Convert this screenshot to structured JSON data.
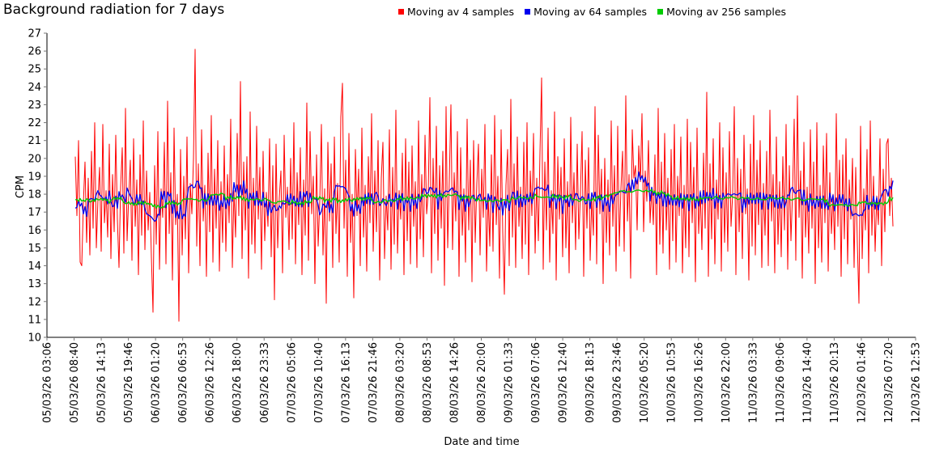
{
  "page": {
    "title": "Background radiation for 7 days"
  },
  "axes": {
    "x_title": "Date and time",
    "y_title": "CPM"
  },
  "legend": {
    "items": [
      {
        "label": "Moving av 4 samples",
        "color": "#ff0000"
      },
      {
        "label": "Moving av 64 samples",
        "color": "#0000ee"
      },
      {
        "label": "Moving av 256 samples",
        "color": "#00cc00"
      }
    ]
  },
  "chart_data": {
    "type": "line",
    "title": "Background radiation for 7 days",
    "xlabel": "Date and time",
    "ylabel": "CPM",
    "ylim": [
      10,
      27
    ],
    "yticks": [
      10,
      11,
      12,
      13,
      14,
      15,
      16,
      17,
      18,
      19,
      20,
      21,
      22,
      23,
      24,
      25,
      26,
      27
    ],
    "grid": false,
    "legend_position": "top",
    "xticklabels": [
      "05/03/26 03:06",
      "05/03/26 08:40",
      "05/03/26 14:13",
      "05/03/26 19:46",
      "06/03/26 01:20",
      "06/03/26 06:53",
      "06/03/26 12:26",
      "06/03/26 18:00",
      "06/03/26 23:33",
      "07/03/26 05:06",
      "07/03/26 10:40",
      "07/03/26 16:13",
      "07/03/26 21:46",
      "08/03/26 03:20",
      "08/03/26 08:53",
      "08/03/26 14:26",
      "08/03/26 20:00",
      "09/03/26 01:33",
      "09/03/26 07:06",
      "09/03/26 12:40",
      "09/03/26 18:13",
      "09/03/26 23:46",
      "10/03/26 05:20",
      "10/03/26 10:53",
      "10/03/26 16:26",
      "10/03/26 22:00",
      "11/03/26 03:33",
      "11/03/26 09:06",
      "11/03/26 14:40",
      "11/03/26 20:13",
      "12/03/26 01:46",
      "12/03/26 07:20",
      "12/03/26 12:53"
    ],
    "data_start_label": "05/03/26 08:40",
    "data_end_label": "12/03/26 07:20",
    "series": [
      {
        "name": "Moving av 4 samples",
        "color": "#ff0000",
        "approx_mean": 17.5,
        "observed_range": [
          10.9,
          26.1
        ],
        "values": [
          20.1,
          16.8,
          21.0,
          14.2,
          14.0,
          17.5,
          19.8,
          15.3,
          18.9,
          14.6,
          20.4,
          16.1,
          22.0,
          15.0,
          17.7,
          19.5,
          14.8,
          21.9,
          16.4,
          18.2,
          15.6,
          20.8,
          14.4,
          19.1,
          15.9,
          21.3,
          16.6,
          13.9,
          18.4,
          20.6,
          14.7,
          22.8,
          15.4,
          17.9,
          19.9,
          14.3,
          21.1,
          16.2,
          18.8,
          13.5,
          20.2,
          15.7,
          22.1,
          14.9,
          19.3,
          16.0,
          18.1,
          14.5,
          11.4,
          19.6,
          15.2,
          21.5,
          13.8,
          18.3,
          16.7,
          20.9,
          14.1,
          23.2,
          15.8,
          19.2,
          13.2,
          21.7,
          16.3,
          18.0,
          10.9,
          20.5,
          14.6,
          19.0,
          15.5,
          21.2,
          13.6,
          18.6,
          16.9,
          20.0,
          26.1,
          15.1,
          19.7,
          14.0,
          21.6,
          16.5,
          18.5,
          13.4,
          20.3,
          15.9,
          22.4,
          14.2,
          19.4,
          16.1,
          21.0,
          13.7,
          18.7,
          15.3,
          20.7,
          14.8,
          19.1,
          16.4,
          22.2,
          13.9,
          18.2,
          15.6,
          21.4,
          16.8,
          24.3,
          14.4,
          19.8,
          16.0,
          20.1,
          13.3,
          22.6,
          15.2,
          18.9,
          14.7,
          21.8,
          16.6,
          19.5,
          13.8,
          20.4,
          15.4,
          18.1,
          16.2,
          21.1,
          14.5,
          19.6,
          12.1,
          20.8,
          15.0,
          17.8,
          19.3,
          13.6,
          21.3,
          16.7,
          18.4,
          14.9,
          20.0,
          15.5,
          22.0,
          14.1,
          19.2,
          16.3,
          20.6,
          13.5,
          18.8,
          15.7,
          23.1,
          14.3,
          21.5,
          16.9,
          19.0,
          13.0,
          20.2,
          15.1,
          17.6,
          21.9,
          14.6,
          18.3,
          11.9,
          20.9,
          16.5,
          19.7,
          13.9,
          21.2,
          15.8,
          18.6,
          14.2,
          22.3,
          24.2,
          16.1,
          19.9,
          13.4,
          21.4,
          15.3,
          18.0,
          12.2,
          20.5,
          16.8,
          19.4,
          14.0,
          21.7,
          15.6,
          18.5,
          13.7,
          20.1,
          16.4,
          22.5,
          14.8,
          19.3,
          15.9,
          21.0,
          13.2,
          18.9,
          20.9,
          14.4,
          17.9,
          16.0,
          21.6,
          13.8,
          19.5,
          15.2,
          22.7,
          14.7,
          18.2,
          16.6,
          20.3,
          13.5,
          21.1,
          15.4,
          19.8,
          14.1,
          20.7,
          16.2,
          18.7,
          13.9,
          22.1,
          15.5,
          19.1,
          14.5,
          21.3,
          16.9,
          18.1,
          23.4,
          13.6,
          20.0,
          15.8,
          21.8,
          14.3,
          19.6,
          16.1,
          20.4,
          12.9,
          22.9,
          15.0,
          18.8,
          23.0,
          14.9,
          19.2,
          16.5,
          21.5,
          13.4,
          20.6,
          15.7,
          18.3,
          14.2,
          22.2,
          16.0,
          19.9,
          13.1,
          21.0,
          15.3,
          18.6,
          20.8,
          14.6,
          19.4,
          16.7,
          21.9,
          13.7,
          18.0,
          15.1,
          20.2,
          14.8,
          22.4,
          16.3,
          19.0,
          13.3,
          21.6,
          15.9,
          12.4,
          18.5,
          20.5,
          14.0,
          23.3,
          15.6,
          19.7,
          13.9,
          21.2,
          16.2,
          18.4,
          14.4,
          20.9,
          15.2,
          22.0,
          13.5,
          19.3,
          16.8,
          21.4,
          14.7,
          18.9,
          15.4,
          20.3,
          24.5,
          13.8,
          19.8,
          16.0,
          21.7,
          14.2,
          18.2,
          15.8,
          22.6,
          13.2,
          20.1,
          16.6,
          19.5,
          14.5,
          21.1,
          15.0,
          18.7,
          13.6,
          22.3,
          16.4,
          19.2,
          14.9,
          20.8,
          15.5,
          18.1,
          21.5,
          13.4,
          19.9,
          16.1,
          20.6,
          14.3,
          17.8,
          15.7,
          22.9,
          14.1,
          21.3,
          16.9,
          19.4,
          13.0,
          20.0,
          15.3,
          18.8,
          14.6,
          22.1,
          16.2,
          19.6,
          13.7,
          21.8,
          15.1,
          18.3,
          20.4,
          14.8,
          23.5,
          16.5,
          19.1,
          13.3,
          21.6,
          18.9,
          19.6,
          16.0,
          20.7,
          18.7,
          22.5,
          15.9,
          19.3,
          17.6,
          21.0,
          16.4,
          18.4,
          16.3,
          20.2,
          13.5,
          22.8,
          15.2,
          19.8,
          14.7,
          21.4,
          16.0,
          18.9,
          13.8,
          20.5,
          15.4,
          21.9,
          14.2,
          19.0,
          16.8,
          21.2,
          13.6,
          18.5,
          15.0,
          22.2,
          14.5,
          20.9,
          16.4,
          19.5,
          13.1,
          21.7,
          15.8,
          18.2,
          14.9,
          20.3,
          16.1,
          23.7,
          13.4,
          19.7,
          15.5,
          21.1,
          14.1,
          18.8,
          16.6,
          22.0,
          13.7,
          20.6,
          15.3,
          19.2,
          14.8,
          21.5,
          16.2,
          18.0,
          22.9,
          13.5,
          20.0,
          15.9,
          19.4,
          14.4,
          21.3,
          16.9,
          18.3,
          13.2,
          20.8,
          15.1,
          22.4,
          14.6,
          19.9,
          16.3,
          21.0,
          13.9,
          18.6,
          15.7,
          20.4,
          14.0,
          22.7,
          16.5,
          19.1,
          13.6,
          21.2,
          15.2,
          18.7,
          14.5,
          20.1,
          16.0,
          21.9,
          13.8,
          19.6,
          15.4,
          18.1,
          22.2,
          14.3,
          23.5,
          16.7,
          19.3,
          13.3,
          20.9,
          15.6,
          18.4,
          14.7,
          21.6,
          16.1,
          19.8,
          13.0,
          22.0,
          15.0,
          18.5,
          14.2,
          20.7,
          16.4,
          21.4,
          13.7,
          19.2,
          15.8,
          18.0,
          14.9,
          22.5,
          16.2,
          19.9,
          13.4,
          20.2,
          15.5,
          21.1,
          14.1,
          18.8,
          16.6,
          20.0,
          13.9,
          19.5,
          15.3,
          11.9,
          21.8,
          14.4,
          18.3,
          16.0,
          20.5,
          13.6,
          22.1,
          15.7,
          19.0,
          14.8,
          17.9,
          16.3,
          21.1,
          14.0,
          19.4,
          15.9,
          20.8,
          21.1,
          16.8,
          18.9,
          16.2
        ]
      },
      {
        "name": "Moving av 64 samples",
        "color": "#0000ee",
        "derived_from": "Moving av 4 samples",
        "window_points": 9,
        "observed_range": [
          16.0,
          19.0
        ]
      },
      {
        "name": "Moving av 256 samples",
        "color": "#00cc00",
        "derived_from": "Moving av 4 samples",
        "window_points": 36,
        "observed_range": [
          16.9,
          18.0
        ]
      }
    ]
  }
}
